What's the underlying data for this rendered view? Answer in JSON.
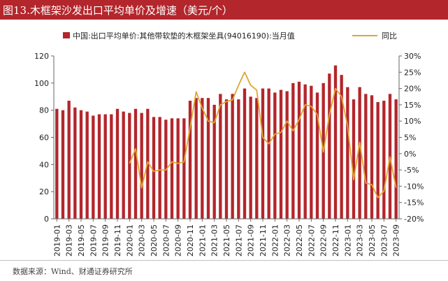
{
  "title": "图13.木框架沙发出口平均单价及增速（美元/个）",
  "source": "数据来源：Wind、财通证券研究所",
  "chart_data": {
    "type": "bar+line",
    "categories": [
      "2019-01",
      "2019-02",
      "2019-03",
      "2019-04",
      "2019-05",
      "2019-06",
      "2019-07",
      "2019-08",
      "2019-09",
      "2019-10",
      "2019-11",
      "2019-12",
      "2020-01",
      "2020-02",
      "2020-03",
      "2020-04",
      "2020-05",
      "2020-06",
      "2020-07",
      "2020-08",
      "2020-09",
      "2020-10",
      "2020-11",
      "2020-12",
      "2021-01",
      "2021-02",
      "2021-03",
      "2021-04",
      "2021-05",
      "2021-06",
      "2021-07",
      "2021-08",
      "2021-09",
      "2021-10",
      "2021-11",
      "2021-12",
      "2022-01",
      "2022-02",
      "2022-03",
      "2022-04",
      "2022-05",
      "2022-06",
      "2022-07",
      "2022-08",
      "2022-09",
      "2022-10",
      "2022-11",
      "2022-12",
      "2023-01",
      "2023-02",
      "2023-03",
      "2023-04",
      "2023-05",
      "2023-06",
      "2023-07",
      "2023-08",
      "2023-09"
    ],
    "x_tick_labels": [
      "2019-01",
      "2019-03",
      "2019-05",
      "2019-07",
      "2019-09",
      "2019-11",
      "2020-01",
      "2020-03",
      "2020-05",
      "2020-07",
      "2020-09",
      "2020-11",
      "2021-01",
      "2021-03",
      "2021-05",
      "2021-07",
      "2021-09",
      "2021-11",
      "2022-01",
      "2022-03",
      "2022-05",
      "2022-07",
      "2022-09",
      "2022-11",
      "2023-01",
      "2023-03",
      "2023-05",
      "2023-07",
      "2023-09"
    ],
    "series": [
      {
        "name": "中国:出口平均单价:其他带软垫的木框架坐具(94016190):当月值",
        "type": "bar",
        "axis": "left",
        "color": "#b3262b",
        "values": [
          81,
          80,
          87,
          82,
          80,
          79,
          76,
          77,
          77,
          77,
          81,
          79,
          78,
          81,
          78,
          81,
          75,
          75,
          73,
          74,
          74,
          74,
          87,
          89,
          89,
          89,
          84,
          92,
          88,
          92,
          88,
          96,
          90,
          89,
          96,
          96,
          93,
          95,
          94,
          100,
          101,
          99,
          98,
          93,
          100,
          107,
          113,
          106,
          97,
          88,
          97,
          92,
          91,
          86,
          87,
          92,
          88
        ]
      },
      {
        "name": "同比",
        "type": "line",
        "axis": "right",
        "color": "#e0a631",
        "values": [
          null,
          null,
          null,
          null,
          null,
          null,
          null,
          null,
          null,
          null,
          null,
          null,
          -3.0,
          1.5,
          -10.5,
          -2.5,
          -5.5,
          -5.0,
          -5.0,
          -2.5,
          -3.0,
          -2.5,
          8.0,
          19.0,
          14.0,
          10.0,
          9.5,
          15.0,
          16.0,
          16.5,
          21.0,
          25.0,
          21.0,
          19.5,
          5.0,
          3.0,
          6.0,
          6.5,
          10.0,
          7.0,
          10.5,
          15.0,
          14.5,
          12.0,
          0.5,
          12.0,
          20.0,
          17.5,
          8.5,
          -8.0,
          3.5,
          -9.0,
          -9.5,
          -13.5,
          -11.5,
          -1.0,
          -10.5
        ]
      }
    ],
    "left_axis": {
      "min": 0,
      "max": 120,
      "ticks": [
        0,
        20,
        40,
        60,
        80,
        100,
        120
      ]
    },
    "right_axis": {
      "min": -20,
      "max": 30,
      "ticks": [
        "30%",
        "25%",
        "20%",
        "15%",
        "10%",
        "5%",
        "0%",
        "-5%",
        "-10%",
        "-15%",
        "-20%"
      ]
    },
    "legend_position": "top"
  }
}
